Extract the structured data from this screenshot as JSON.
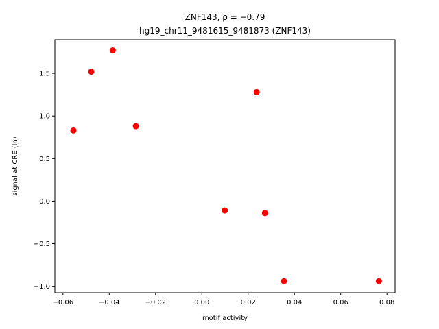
{
  "chart_data": {
    "type": "scatter",
    "title_line1": "ZNF143, ρ = −0.79",
    "title_line2": "hg19_chr11_9481615_9481873 (ZNF143)",
    "xlabel": "motif activity",
    "ylabel": "signal at CRE (ln)",
    "xlim": [
      -0.0635,
      0.0835
    ],
    "ylim": [
      -1.075,
      1.895
    ],
    "xticks": [
      -0.06,
      -0.04,
      -0.02,
      0.0,
      0.02,
      0.04,
      0.06,
      0.08
    ],
    "xtick_labels": [
      "−0.06",
      "−0.04",
      "−0.02",
      "0.00",
      "0.02",
      "0.04",
      "0.06",
      "0.08"
    ],
    "yticks": [
      -1.0,
      -0.5,
      0.0,
      0.5,
      1.0,
      1.5
    ],
    "ytick_labels": [
      "−1.0",
      "−0.5",
      "0.0",
      "0.5",
      "1.0",
      "1.5"
    ],
    "grid": false,
    "point_color": "#ff0000",
    "points": [
      {
        "x": -0.0555,
        "y": 0.83
      },
      {
        "x": -0.0478,
        "y": 1.52
      },
      {
        "x": -0.0385,
        "y": 1.77
      },
      {
        "x": -0.0285,
        "y": 0.88
      },
      {
        "x": 0.0099,
        "y": -0.11
      },
      {
        "x": 0.0237,
        "y": 1.28
      },
      {
        "x": 0.0273,
        "y": -0.14
      },
      {
        "x": 0.0355,
        "y": -0.94
      },
      {
        "x": 0.0765,
        "y": -0.94
      }
    ]
  }
}
